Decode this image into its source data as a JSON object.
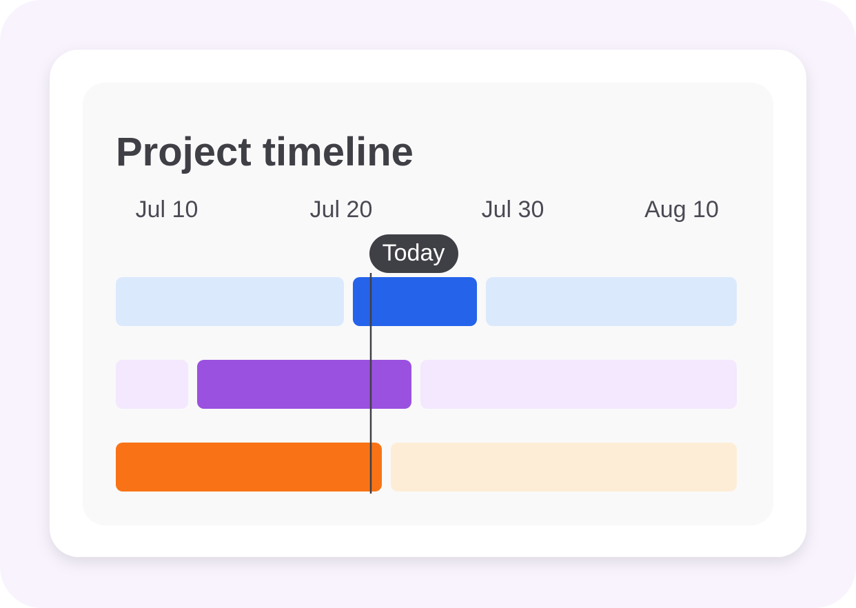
{
  "title": "Project timeline",
  "dates": [
    "Jul 10",
    "Jul 20",
    "Jul 30",
    "Aug 10"
  ],
  "marker": "Today"
}
